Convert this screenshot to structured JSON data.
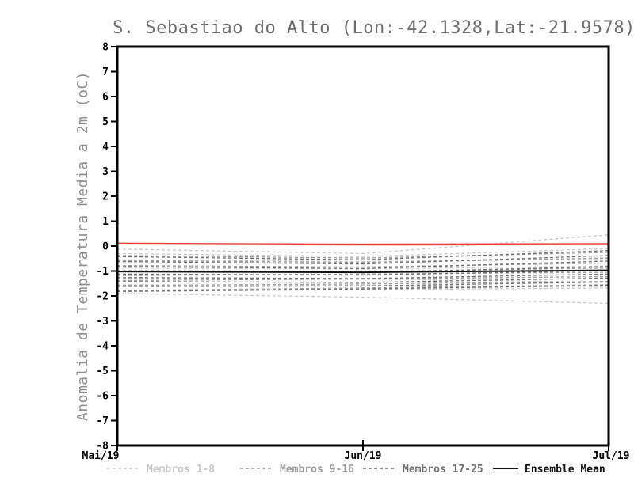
{
  "chart_data": {
    "type": "line",
    "title": "S. Sebastiao do Alto (Lon:-42.1328,Lat:-21.9578)",
    "ylabel": "Anomalia de Temperatura Media a 2m (oC)",
    "xlabel": "",
    "xticklabels": [
      "Mai/19",
      "Jun/19",
      "Jul/19"
    ],
    "x_positions": [
      0,
      1,
      2
    ],
    "ylim": [
      -8,
      8
    ],
    "yticks": [
      8,
      7,
      6,
      5,
      4,
      3,
      2,
      1,
      0,
      -1,
      -2,
      -3,
      -4,
      -5,
      -6,
      -7,
      -8
    ],
    "grid": false,
    "legend_position": "bottom",
    "colors": {
      "members_1_8": "#c9c9c9",
      "members_9_16": "#9c9c9c",
      "members_17_25": "#6f6f6f",
      "ensemble_mean": "#111111",
      "reference_line": "#ee3b3b",
      "frame": "#000000",
      "title": "#6e6e6e"
    },
    "reference_line": {
      "name": "zero-reference",
      "color": "#ee3b3b",
      "values": [
        0.1,
        0.06,
        0.08
      ]
    },
    "ensemble_mean": {
      "name": "Ensemble Mean",
      "color": "#111111",
      "values": [
        -1.02,
        -1.05,
        -0.97
      ]
    },
    "member_groups": [
      {
        "name": "Membros 1-8",
        "color": "#c9c9c9",
        "members": [
          [
            -0.12,
            -0.3,
            0.45
          ],
          [
            -0.3,
            -0.42,
            -0.1
          ],
          [
            -1.9,
            -2.05,
            -2.3
          ],
          [
            -0.55,
            -0.62,
            -0.5
          ],
          [
            -0.88,
            -0.92,
            -0.8
          ],
          [
            -1.28,
            -1.32,
            -1.45
          ],
          [
            -1.55,
            -1.58,
            -1.62
          ],
          [
            -1.82,
            -1.75,
            -1.68
          ]
        ]
      },
      {
        "name": "Membros 9-16",
        "color": "#9c9c9c",
        "members": [
          [
            -0.38,
            -0.48,
            -0.25
          ],
          [
            -0.58,
            -0.66,
            -0.48
          ],
          [
            -0.78,
            -0.84,
            -0.68
          ],
          [
            -0.98,
            -1.02,
            -0.88
          ],
          [
            -1.18,
            -1.12,
            -1.05
          ],
          [
            -1.38,
            -1.32,
            -1.22
          ],
          [
            -1.58,
            -1.52,
            -1.42
          ],
          [
            -1.78,
            -1.68,
            -1.55
          ]
        ]
      },
      {
        "name": "Membros 17-25",
        "color": "#6f6f6f",
        "members": [
          [
            -0.42,
            -0.55,
            -0.18
          ],
          [
            -0.62,
            -0.72,
            -0.38
          ],
          [
            -0.82,
            -0.9,
            -0.6
          ],
          [
            -1.02,
            -1.06,
            -0.82
          ],
          [
            -1.12,
            -1.16,
            -0.98
          ],
          [
            -1.26,
            -1.3,
            -1.12
          ],
          [
            -1.42,
            -1.46,
            -1.28
          ],
          [
            -1.62,
            -1.6,
            -1.44
          ],
          [
            -1.82,
            -1.72,
            -1.58
          ]
        ]
      }
    ],
    "legend": [
      {
        "label": "Membros 1-8",
        "style": "dashed",
        "color": "#c9c9c9"
      },
      {
        "label": "Membros 9-16",
        "style": "dashed",
        "color": "#9c9c9c"
      },
      {
        "label": "Membros 17-25",
        "style": "dashed",
        "color": "#6f6f6f"
      },
      {
        "label": "Ensemble Mean",
        "style": "solid",
        "color": "#111111"
      }
    ]
  }
}
